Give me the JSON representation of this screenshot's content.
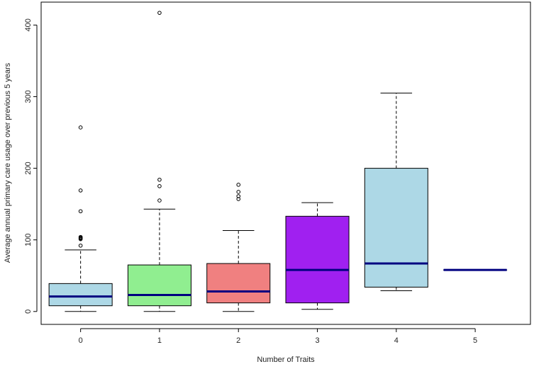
{
  "chart_data": {
    "type": "boxplot",
    "title": "",
    "xlabel": "Number of Traits",
    "ylabel": "Average annual primary care usage over previous 5 years",
    "ylim": [
      -18,
      432
    ],
    "xlim": [
      -0.5,
      5.7
    ],
    "yticks": [
      0,
      100,
      200,
      300,
      400
    ],
    "grid": false,
    "legend": "none",
    "median_color": "#000080",
    "groups": [
      {
        "label": "0",
        "color": "#add8e6",
        "whisker_low": 0,
        "q1": 8,
        "median": 21,
        "q3": 39,
        "whisker_high": 86,
        "outliers": [
          92,
          101,
          102,
          103,
          104,
          140,
          169,
          257
        ]
      },
      {
        "label": "1",
        "color": "#90ee90",
        "whisker_low": 0,
        "q1": 8,
        "median": 23,
        "q3": 65,
        "whisker_high": 143,
        "outliers": [
          155,
          175,
          184,
          417
        ]
      },
      {
        "label": "2",
        "color": "#f08080",
        "whisker_low": 0,
        "q1": 12,
        "median": 28,
        "q3": 67,
        "whisker_high": 113,
        "outliers": [
          157,
          161,
          167,
          177
        ]
      },
      {
        "label": "3",
        "color": "#a020f0",
        "whisker_low": 3,
        "q1": 12,
        "median": 58,
        "q3": 133,
        "whisker_high": 152,
        "outliers": []
      },
      {
        "label": "4",
        "color": "#add8e6",
        "whisker_low": 29,
        "q1": 34,
        "median": 67,
        "q3": 200,
        "whisker_high": 305,
        "outliers": []
      },
      {
        "label": "5",
        "color": "#add8e6",
        "whisker_low": 58,
        "q1": 58,
        "median": 58,
        "q3": 58,
        "whisker_high": 58,
        "outliers": []
      }
    ]
  }
}
